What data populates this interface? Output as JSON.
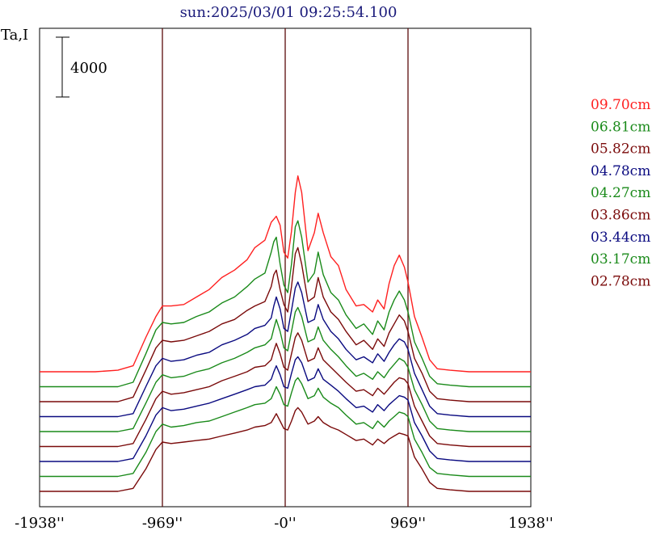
{
  "chart_data": {
    "type": "line",
    "title": "sun:2025/03/01 09:25:54.100",
    "ylabel": "Ta,I",
    "scale_bar_label": "4000",
    "xlabel": "",
    "xlim": [
      -1938,
      1938
    ],
    "x_ticks": [
      {
        "value": -1938,
        "label": "-1938''"
      },
      {
        "value": -969,
        "label": "-969''"
      },
      {
        "value": 0,
        "label": "-0''"
      },
      {
        "value": 969,
        "label": "969''"
      },
      {
        "value": 1938,
        "label": "1938''"
      }
    ],
    "vertical_lines_at": [
      -969,
      0,
      969
    ],
    "colors": {
      "red": "#ff2020",
      "green": "#1a8a1a",
      "darkred": "#7a0a0a",
      "blue": "#0a0a80",
      "frame": "#000000",
      "vline": "#5a0a0a"
    },
    "x": [
      -1938,
      -1700,
      -1500,
      -1320,
      -1200,
      -1100,
      -1020,
      -969,
      -900,
      -800,
      -700,
      -600,
      -500,
      -400,
      -300,
      -240,
      -160,
      -110,
      -90,
      -70,
      -40,
      -10,
      20,
      50,
      80,
      100,
      130,
      180,
      230,
      260,
      300,
      360,
      420,
      480,
      560,
      620,
      690,
      730,
      780,
      820,
      860,
      900,
      940,
      969,
      1020,
      1080,
      1140,
      1200,
      1300,
      1450,
      1600,
      1750,
      1938
    ],
    "series": [
      {
        "name": "09.70cm",
        "color": "red",
        "offset": 8000,
        "values": [
          0,
          0,
          0,
          100,
          400,
          2300,
          3700,
          4400,
          4400,
          4500,
          5000,
          5500,
          6300,
          6800,
          7500,
          8300,
          8800,
          10000,
          10200,
          10400,
          9800,
          8000,
          7600,
          9400,
          12000,
          13100,
          12000,
          8100,
          9300,
          10600,
          9300,
          7700,
          7100,
          5500,
          4400,
          4500,
          4000,
          4800,
          4200,
          5900,
          7100,
          7800,
          7000,
          6000,
          3700,
          2300,
          800,
          200,
          100,
          0,
          0,
          0,
          0
        ]
      },
      {
        "name": "06.81cm",
        "color": "green",
        "offset": 7000,
        "values": [
          0,
          0,
          0,
          0,
          300,
          2200,
          3800,
          4300,
          4200,
          4300,
          4700,
          5000,
          5600,
          6000,
          6700,
          7200,
          7600,
          9000,
          9700,
          10000,
          8200,
          6800,
          6300,
          8200,
          10700,
          11100,
          10000,
          7000,
          7600,
          9000,
          7500,
          6300,
          5800,
          4800,
          3900,
          4200,
          3500,
          4400,
          3800,
          5000,
          5800,
          6400,
          5800,
          5000,
          3000,
          1900,
          700,
          200,
          100,
          0,
          0,
          0,
          0
        ]
      },
      {
        "name": "05.82cm",
        "color": "darkred",
        "offset": 6000,
        "values": [
          0,
          0,
          0,
          0,
          300,
          2100,
          3600,
          4100,
          4000,
          4100,
          4400,
          4700,
          5200,
          5500,
          6100,
          6400,
          6700,
          7700,
          8500,
          8800,
          7500,
          6500,
          6000,
          7700,
          9900,
          10300,
          9200,
          6700,
          7000,
          8300,
          7000,
          6000,
          5500,
          4700,
          3800,
          4100,
          3500,
          4200,
          3700,
          4600,
          5200,
          5800,
          5400,
          4700,
          2900,
          1900,
          700,
          200,
          100,
          0,
          0,
          0,
          0
        ]
      },
      {
        "name": "04.78cm",
        "color": "blue",
        "offset": 5000,
        "values": [
          0,
          0,
          0,
          0,
          200,
          2000,
          3400,
          3900,
          3700,
          3800,
          4100,
          4300,
          4800,
          5100,
          5500,
          5900,
          6100,
          6600,
          7400,
          8000,
          7200,
          5900,
          5700,
          7100,
          8600,
          9000,
          8300,
          6300,
          6500,
          7500,
          6500,
          5700,
          5200,
          4500,
          3800,
          4000,
          3600,
          4200,
          3700,
          4300,
          4800,
          5200,
          5000,
          4500,
          2900,
          1800,
          700,
          200,
          100,
          0,
          0,
          0,
          0
        ]
      },
      {
        "name": "04.27cm",
        "color": "green",
        "offset": 4000,
        "values": [
          0,
          0,
          0,
          0,
          200,
          1900,
          3300,
          3800,
          3600,
          3700,
          4000,
          4200,
          4600,
          4900,
          5300,
          5600,
          5800,
          6200,
          6900,
          7500,
          6700,
          5600,
          5400,
          6700,
          8000,
          8300,
          7700,
          6000,
          6200,
          7000,
          6100,
          5500,
          5000,
          4400,
          3700,
          3900,
          3500,
          4000,
          3600,
          4100,
          4500,
          4900,
          4700,
          4300,
          2800,
          1800,
          700,
          200,
          100,
          0,
          0,
          0,
          0
        ]
      },
      {
        "name": "03.86cm",
        "color": "darkred",
        "offset": 3000,
        "values": [
          0,
          0,
          0,
          0,
          200,
          1800,
          3200,
          3700,
          3500,
          3600,
          3800,
          4000,
          4400,
          4700,
          5000,
          5300,
          5400,
          5800,
          6400,
          6900,
          6200,
          5300,
          5100,
          6200,
          7300,
          7600,
          7100,
          5700,
          5900,
          6600,
          5800,
          5300,
          4800,
          4300,
          3700,
          3800,
          3400,
          3900,
          3500,
          3900,
          4300,
          4600,
          4500,
          4200,
          2700,
          1700,
          700,
          200,
          100,
          0,
          0,
          0,
          0
        ]
      },
      {
        "name": "03.44cm",
        "color": "blue",
        "offset": 2000,
        "values": [
          0,
          0,
          0,
          0,
          200,
          1700,
          3100,
          3600,
          3400,
          3500,
          3700,
          3900,
          4200,
          4500,
          4800,
          5000,
          5100,
          5500,
          6000,
          6400,
          5800,
          5000,
          4900,
          5900,
          6800,
          7000,
          6600,
          5400,
          5600,
          6200,
          5500,
          5100,
          4700,
          4200,
          3600,
          3700,
          3300,
          3800,
          3400,
          3800,
          4100,
          4400,
          4300,
          4100,
          2600,
          1700,
          700,
          200,
          100,
          0,
          0,
          0,
          0
        ]
      },
      {
        "name": "03.17cm",
        "color": "green",
        "offset": 1000,
        "values": [
          0,
          0,
          0,
          0,
          200,
          1600,
          3000,
          3500,
          3300,
          3400,
          3600,
          3700,
          4000,
          4300,
          4600,
          4800,
          4900,
          5200,
          5600,
          6000,
          5500,
          4800,
          4700,
          5600,
          6400,
          6600,
          6200,
          5200,
          5400,
          5900,
          5300,
          4900,
          4600,
          4100,
          3500,
          3600,
          3200,
          3700,
          3300,
          3700,
          4000,
          4300,
          4200,
          4000,
          2500,
          1600,
          600,
          200,
          100,
          0,
          0,
          0,
          0
        ]
      },
      {
        "name": "02.78cm",
        "color": "darkred",
        "offset": 0,
        "values": [
          0,
          0,
          0,
          0,
          200,
          1500,
          2800,
          3300,
          3200,
          3300,
          3400,
          3500,
          3700,
          3900,
          4100,
          4300,
          4400,
          4600,
          4900,
          5200,
          4700,
          4200,
          4100,
          4700,
          5400,
          5600,
          5300,
          4500,
          4700,
          5000,
          4600,
          4300,
          4100,
          3800,
          3400,
          3500,
          3100,
          3500,
          3200,
          3500,
          3700,
          3900,
          3800,
          3700,
          2300,
          1500,
          600,
          200,
          100,
          0,
          0,
          0,
          0
        ]
      }
    ]
  }
}
